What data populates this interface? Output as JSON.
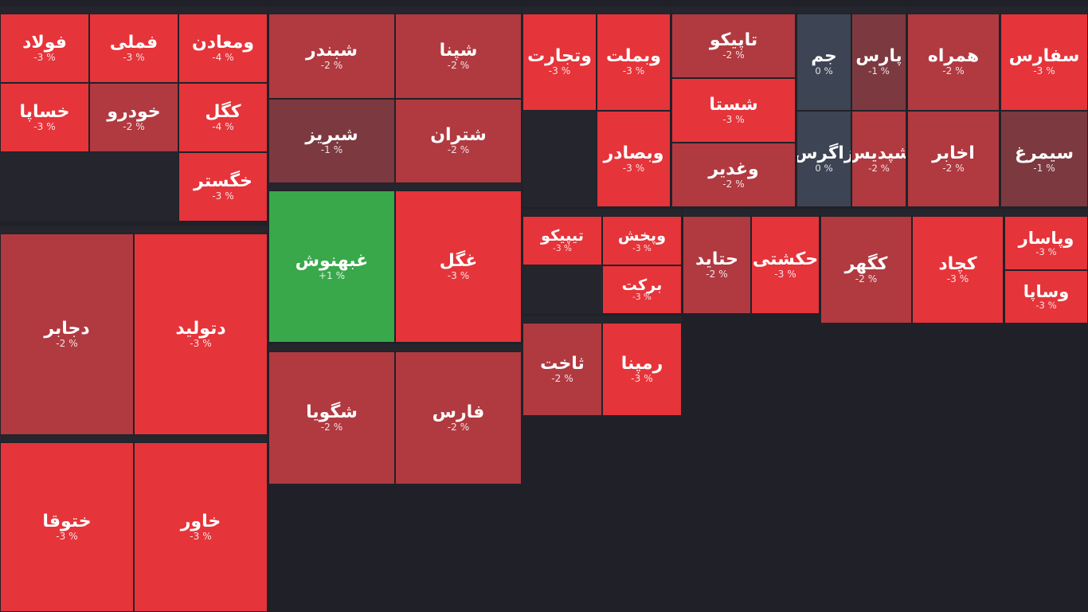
{
  "header": {
    "title": ""
  },
  "colors": {
    "down_strong": "#e5343a",
    "down_mid": "#b03a40",
    "down_weak": "#7d3940",
    "flat": "#3d4454",
    "up_weak": "#38a84a",
    "up_strong": "#2ecc55"
  },
  "chart_data": {
    "type": "treemap",
    "title": "",
    "sectors": [
      {
        "name": "",
        "tiles": [
          {
            "label": "ومعادن",
            "change": -4
          },
          {
            "label": "فملی",
            "change": -3
          },
          {
            "label": "فولاد",
            "change": -3
          },
          {
            "label": "کگل",
            "change": -4
          },
          {
            "label": "خودرو",
            "change": -2
          },
          {
            "label": "خساپا",
            "change": -3
          },
          {
            "label": "خگستر",
            "change": -3
          }
        ]
      },
      {
        "name": "",
        "tiles": [
          {
            "label": "شپنا",
            "change": -2
          },
          {
            "label": "شبندر",
            "change": -2
          },
          {
            "label": "شتران",
            "change": -2
          },
          {
            "label": "شبریز",
            "change": -1
          }
        ]
      },
      {
        "name": "",
        "tiles": [
          {
            "label": "وبملت",
            "change": -3
          },
          {
            "label": "وتجارت",
            "change": -3
          },
          {
            "label": "وبصادر",
            "change": -3
          }
        ]
      },
      {
        "name": "",
        "tiles": [
          {
            "label": "تاپیکو",
            "change": -2
          },
          {
            "label": "شستا",
            "change": -3
          },
          {
            "label": "وغدیر",
            "change": -2
          }
        ]
      },
      {
        "name": "",
        "tiles": [
          {
            "label": "پارس",
            "change": -1
          },
          {
            "label": "جم",
            "change": 0
          },
          {
            "label": "شپدیس",
            "change": -2
          },
          {
            "label": "زاگرس",
            "change": 0
          }
        ]
      },
      {
        "name": "",
        "tiles": [
          {
            "label": "همراه",
            "change": -2
          },
          {
            "label": "اخابر",
            "change": -2
          }
        ]
      },
      {
        "name": "",
        "tiles": [
          {
            "label": "سفارس",
            "change": -3
          },
          {
            "label": "سیمرغ",
            "change": -1
          }
        ]
      },
      {
        "name": "",
        "tiles": [
          {
            "label": "دتولید",
            "change": -3
          },
          {
            "label": "دجابر",
            "change": -2
          }
        ]
      },
      {
        "name": "",
        "tiles": [
          {
            "label": "غگل",
            "change": -3
          },
          {
            "label": "غبهنوش",
            "change": 1
          }
        ]
      },
      {
        "name": "",
        "tiles": [
          {
            "label": "وپخش",
            "change": -3
          },
          {
            "label": "تیپیکو",
            "change": -3
          },
          {
            "label": "برکت",
            "change": -3
          }
        ]
      },
      {
        "name": "",
        "tiles": [
          {
            "label": "حکشتی",
            "change": -3
          },
          {
            "label": "حتاید",
            "change": -2
          }
        ]
      },
      {
        "name": "",
        "tiles": [
          {
            "label": "کچاد",
            "change": -3
          },
          {
            "label": "کگهر",
            "change": -2
          }
        ]
      },
      {
        "name": "",
        "tiles": [
          {
            "label": "وپاسار",
            "change": -3
          },
          {
            "label": "وساپا",
            "change": -3
          }
        ]
      },
      {
        "name": "",
        "tiles": [
          {
            "label": "خاور",
            "change": -3
          },
          {
            "label": "ختوقا",
            "change": -3
          }
        ]
      },
      {
        "name": "",
        "tiles": [
          {
            "label": "فارس",
            "change": -2
          },
          {
            "label": "شگویا",
            "change": -2
          }
        ]
      },
      {
        "name": "",
        "tiles": [
          {
            "label": "رمپنا",
            "change": -3
          },
          {
            "label": "ثاخت",
            "change": -2
          }
        ]
      }
    ]
  }
}
